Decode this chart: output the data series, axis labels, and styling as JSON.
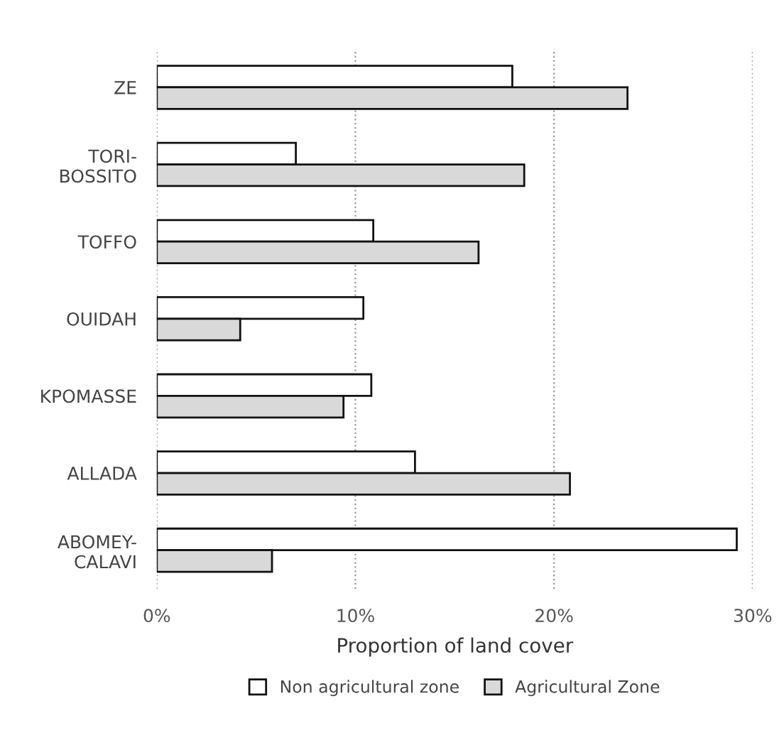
{
  "chart_data": {
    "type": "bar",
    "orientation": "horizontal",
    "xlabel": "Proportion of land cover",
    "categories": [
      "ZE",
      "TORI-\nBOSSITO",
      "TOFFO",
      "OUIDAH",
      "KPOMASSE",
      "ALLADA",
      "ABOMEY-\nCALAVI"
    ],
    "series": [
      {
        "name": "Non agricultural zone",
        "color": "#ffffff",
        "values": [
          17.9,
          7.0,
          10.9,
          10.4,
          10.8,
          13.0,
          29.2
        ]
      },
      {
        "name": "Agricultural Zone",
        "color": "#d9d9d9",
        "values": [
          23.7,
          18.5,
          16.2,
          4.2,
          9.4,
          20.8,
          5.8
        ]
      }
    ],
    "xlim": [
      0,
      30
    ],
    "xticks": [
      {
        "value": 0,
        "label": "0%"
      },
      {
        "value": 10,
        "label": "10%"
      },
      {
        "value": 20,
        "label": "20%"
      },
      {
        "value": 30,
        "label": "30%"
      }
    ],
    "grid": "x",
    "legend": "bottom"
  }
}
